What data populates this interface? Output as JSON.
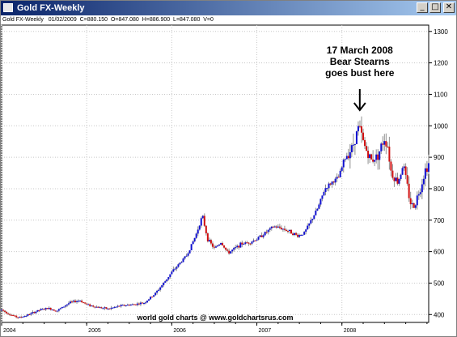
{
  "window": {
    "title": "Gold FX-Weekly",
    "controls": {
      "minimize": "_",
      "maximize": "□",
      "close": "✕"
    }
  },
  "info": {
    "symbol": "Gold FX-Weekly",
    "date": "01/02/2009",
    "close": "C=880.150",
    "open": "O=847.080",
    "high": "H=886.900",
    "low": "L=847.080",
    "volume": "V=0"
  },
  "annotation": {
    "line1": "17 March 2008",
    "line2": "Bear Stearns",
    "line3": "goes bust here",
    "arrow_date": 2008.21
  },
  "footer": "world gold charts @ www.goldchartsrus.com",
  "colors": {
    "up": "#1010d0",
    "down": "#d01010",
    "wick": "#909090",
    "grid": "#c8c8c8"
  },
  "chart_data": {
    "type": "line",
    "series_style": "OHLC bars",
    "xlabel": "",
    "ylabel": "",
    "x_ticks": [
      "2004",
      "2005",
      "2006",
      "2007",
      "2008"
    ],
    "y_ticks": [
      400,
      500,
      600,
      700,
      800,
      900,
      1000,
      1100,
      1200,
      1300
    ],
    "ylim": [
      375,
      1320
    ],
    "xlim": [
      2004.0,
      2009.02
    ],
    "grid": true,
    "price_path": [
      [
        2004.0,
        415
      ],
      [
        2004.1,
        400
      ],
      [
        2004.2,
        390
      ],
      [
        2004.3,
        398
      ],
      [
        2004.45,
        415
      ],
      [
        2004.55,
        420
      ],
      [
        2004.65,
        412
      ],
      [
        2004.8,
        438
      ],
      [
        2004.92,
        445
      ],
      [
        2005.0,
        432
      ],
      [
        2005.1,
        425
      ],
      [
        2005.25,
        418
      ],
      [
        2005.4,
        428
      ],
      [
        2005.55,
        432
      ],
      [
        2005.68,
        438
      ],
      [
        2005.8,
        465
      ],
      [
        2005.92,
        505
      ],
      [
        2006.0,
        535
      ],
      [
        2006.1,
        565
      ],
      [
        2006.18,
        590
      ],
      [
        2006.28,
        650
      ],
      [
        2006.36,
        715
      ],
      [
        2006.42,
        640
      ],
      [
        2006.5,
        610
      ],
      [
        2006.58,
        630
      ],
      [
        2006.66,
        595
      ],
      [
        2006.74,
        610
      ],
      [
        2006.82,
        625
      ],
      [
        2006.92,
        630
      ],
      [
        2007.0,
        640
      ],
      [
        2007.1,
        660
      ],
      [
        2007.2,
        680
      ],
      [
        2007.28,
        675
      ],
      [
        2007.38,
        665
      ],
      [
        2007.48,
        650
      ],
      [
        2007.56,
        660
      ],
      [
        2007.64,
        700
      ],
      [
        2007.72,
        740
      ],
      [
        2007.8,
        800
      ],
      [
        2007.88,
        820
      ],
      [
        2007.96,
        835
      ],
      [
        2008.04,
        900
      ],
      [
        2008.12,
        930
      ],
      [
        2008.2,
        1000
      ],
      [
        2008.26,
        940
      ],
      [
        2008.34,
        890
      ],
      [
        2008.42,
        905
      ],
      [
        2008.5,
        960
      ],
      [
        2008.54,
        935
      ],
      [
        2008.58,
        850
      ],
      [
        2008.66,
        820
      ],
      [
        2008.72,
        880
      ],
      [
        2008.76,
        820
      ],
      [
        2008.8,
        760
      ],
      [
        2008.84,
        740
      ],
      [
        2008.88,
        770
      ],
      [
        2008.92,
        800
      ],
      [
        2008.98,
        860
      ],
      [
        2009.02,
        880
      ]
    ]
  }
}
